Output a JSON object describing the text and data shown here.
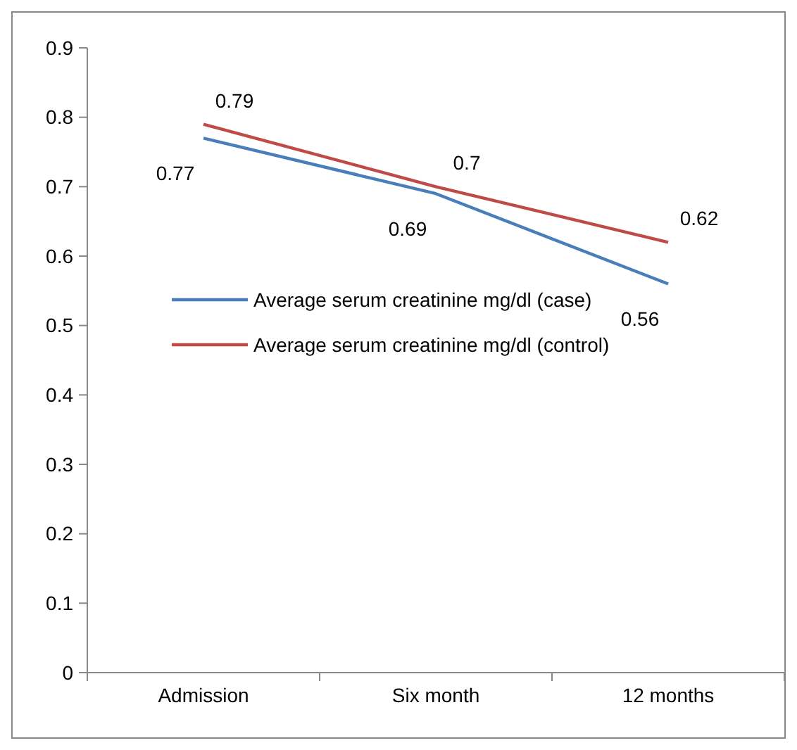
{
  "chart_data": {
    "type": "line",
    "categories": [
      "Admission",
      "Six month",
      "12 months"
    ],
    "series": [
      {
        "name": "Average serum creatinine mg/dl (case)",
        "color": "#4a7ebb",
        "values": [
          0.77,
          0.69,
          0.56
        ]
      },
      {
        "name": "Average serum creatinine mg/dl (control)",
        "color": "#be4b48",
        "values": [
          0.79,
          0.7,
          0.62
        ]
      }
    ],
    "ylim": [
      0,
      0.9
    ],
    "yticks": [
      0,
      0.1,
      0.2,
      0.3,
      0.4,
      0.5,
      0.6,
      0.7,
      0.8,
      0.9
    ],
    "data_labels": true,
    "legend": "left",
    "grid": false,
    "marker": "none",
    "line_style": "solid"
  }
}
